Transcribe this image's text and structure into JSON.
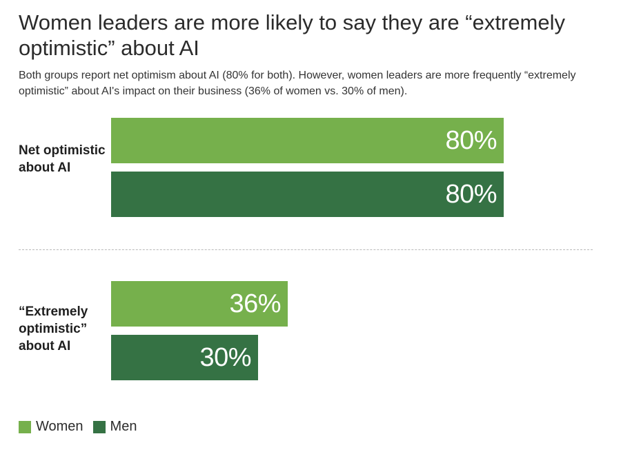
{
  "chart_data": {
    "type": "bar",
    "orientation": "horizontal",
    "title": "Women leaders are more likely to say they are “extremely optimistic” about AI",
    "subtitle": "Both groups report net optimism about AI (80% for both). However, women leaders are more frequently “extremely optimistic” about AI's impact on their business (36% of women vs. 30% of men).",
    "categories": [
      "Net optimistic about AI",
      "“Extremely optimistic” about AI"
    ],
    "series": [
      {
        "name": "Women",
        "color": "#76b04c",
        "values": [
          80,
          36
        ],
        "labels": [
          "80%",
          "36%"
        ]
      },
      {
        "name": "Men",
        "color": "#357244",
        "values": [
          80,
          30
        ],
        "labels": [
          "80%",
          "30%"
        ]
      }
    ],
    "xlim": [
      0,
      100
    ],
    "grid": false,
    "legend_placement": "bottom-left"
  }
}
